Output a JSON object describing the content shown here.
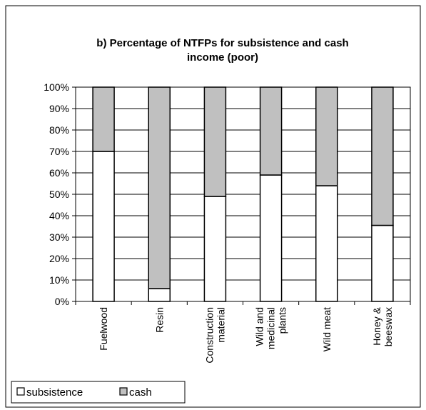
{
  "chart_data": {
    "type": "bar",
    "stacked": true,
    "percent_stacked": true,
    "title": "b) Percentage of NTFPs for subsistence and cash income (poor)",
    "title_lines": [
      "b) Percentage of NTFPs for subsistence and cash",
      "income (poor)"
    ],
    "categories": [
      "Fuelwood",
      "Resin",
      "Construction material",
      "Wild and medicinal plants",
      "Wild meat",
      "Honey & beeswax"
    ],
    "category_lines": [
      [
        "Fuelwood"
      ],
      [
        "Resin"
      ],
      [
        "Construction",
        "material"
      ],
      [
        "Wild and",
        "medicinal",
        "plants"
      ],
      [
        "Wild meat"
      ],
      [
        "Honey &",
        "beeswax"
      ]
    ],
    "series": [
      {
        "name": "subsistence",
        "color": "#ffffff",
        "values": [
          70,
          6,
          49,
          59,
          54,
          35.5
        ]
      },
      {
        "name": "cash",
        "color": "#c0c0c0",
        "values": [
          30,
          94,
          51,
          41,
          46,
          64.5
        ]
      }
    ],
    "ylim": [
      0,
      100
    ],
    "yticks": [
      "0%",
      "10%",
      "20%",
      "30%",
      "40%",
      "50%",
      "60%",
      "70%",
      "80%",
      "90%",
      "100%"
    ],
    "grid": true,
    "legend_position": "bottom-left"
  }
}
